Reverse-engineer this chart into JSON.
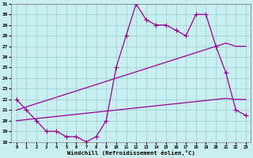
{
  "x": [
    0,
    1,
    2,
    3,
    4,
    5,
    6,
    7,
    8,
    9,
    10,
    11,
    12,
    13,
    14,
    15,
    16,
    17,
    18,
    19,
    20,
    21,
    22,
    23
  ],
  "line_jagged": [
    22,
    21,
    20,
    19,
    19,
    18.5,
    18.5,
    18,
    18.5,
    20,
    25,
    28,
    31,
    29.5,
    29,
    29,
    28.5,
    28,
    30,
    30,
    27,
    24.5,
    21,
    20.5
  ],
  "line_upper": [
    21.0,
    21.3,
    21.6,
    21.9,
    22.2,
    22.5,
    22.8,
    23.1,
    23.4,
    23.7,
    24.0,
    24.3,
    24.6,
    24.9,
    25.2,
    25.5,
    25.8,
    26.1,
    26.4,
    26.7,
    27.0,
    27.3,
    27.0,
    27.0
  ],
  "line_lower": [
    20.0,
    20.1,
    20.2,
    20.3,
    20.4,
    20.5,
    20.6,
    20.7,
    20.8,
    20.9,
    21.0,
    21.1,
    21.2,
    21.3,
    21.4,
    21.5,
    21.6,
    21.7,
    21.8,
    21.9,
    22.0,
    22.1,
    22.0,
    22.0
  ],
  "xlabel": "Windchill (Refroidissement éolien,°C)",
  "bg_color": "#c8eef0",
  "line_color": "#990099",
  "grid_color": "#99cccc",
  "xlim": [
    -0.5,
    23.5
  ],
  "ylim": [
    18,
    31
  ],
  "yticks": [
    18,
    19,
    20,
    21,
    22,
    23,
    24,
    25,
    26,
    27,
    28,
    29,
    30,
    31
  ],
  "xticks": [
    0,
    1,
    2,
    3,
    4,
    5,
    6,
    7,
    8,
    9,
    10,
    11,
    12,
    13,
    14,
    15,
    16,
    17,
    18,
    19,
    20,
    21,
    22,
    23
  ],
  "marker": "+",
  "markersize": 4,
  "linewidth": 0.9
}
